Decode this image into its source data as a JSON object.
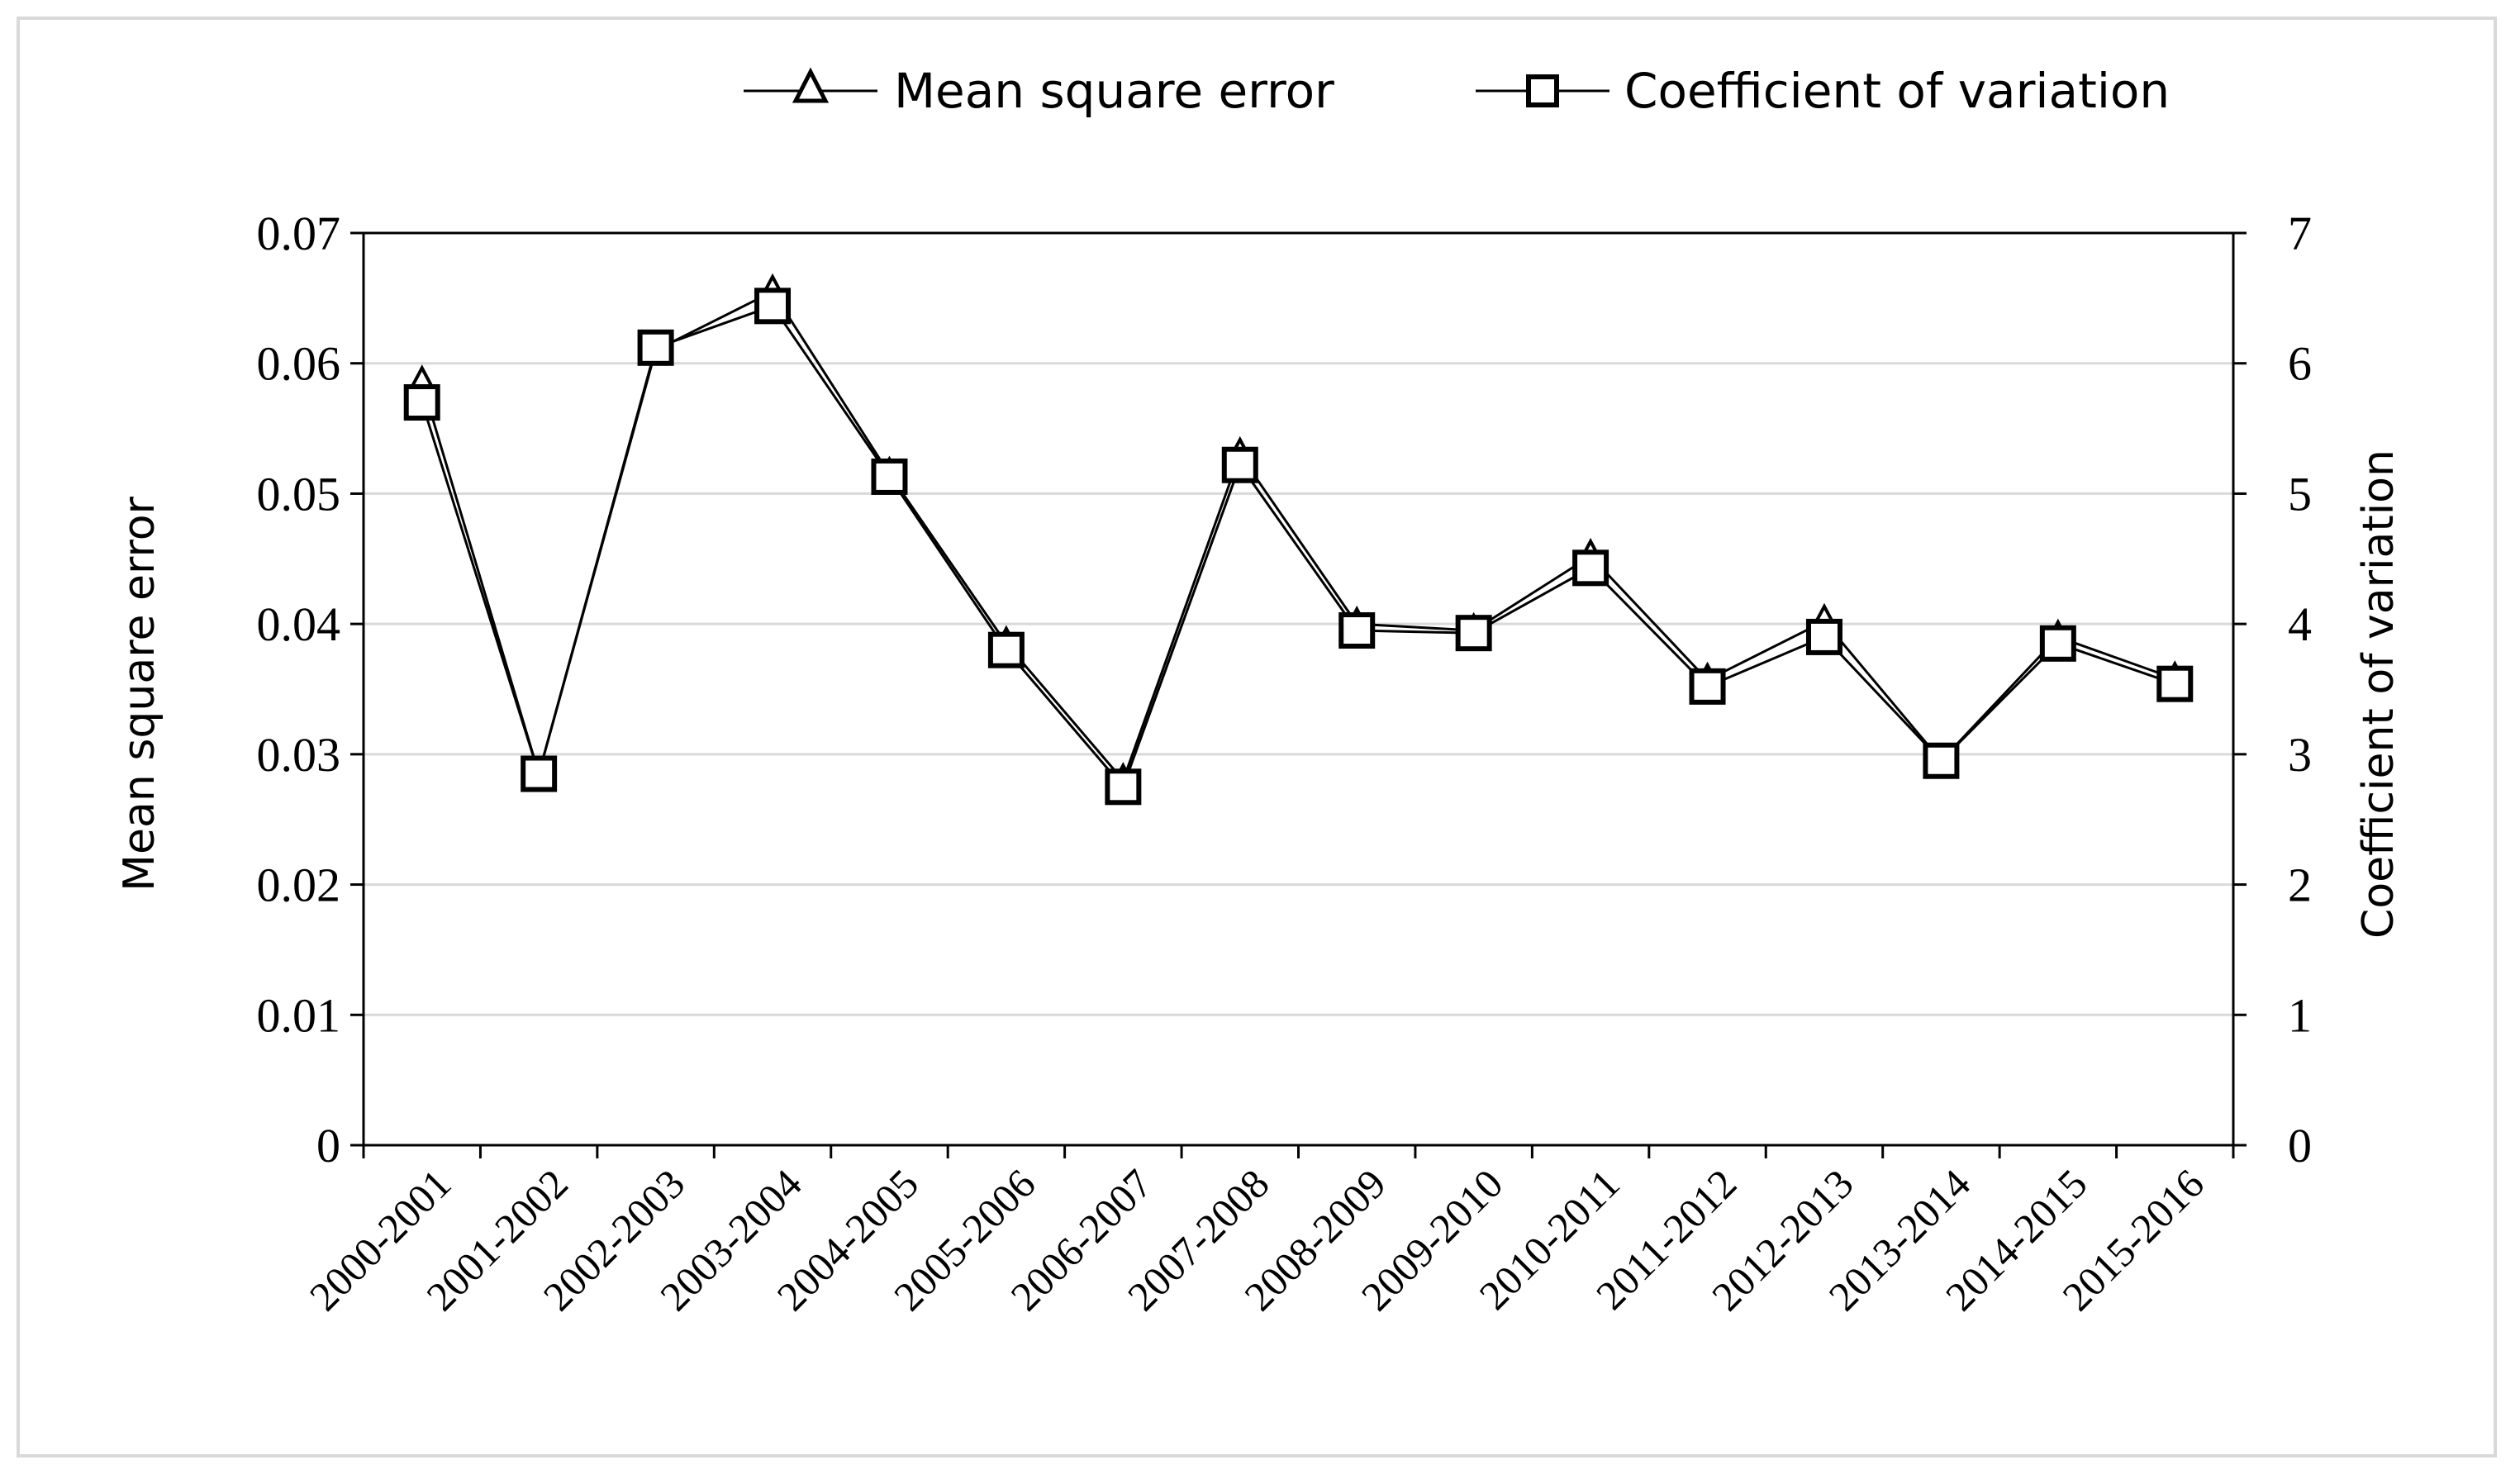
{
  "chart_data": {
    "type": "line",
    "categories": [
      "2000-2001",
      "2001-2002",
      "2002-2003",
      "2003-2004",
      "2004-2005",
      "2005-2006",
      "2006-2007",
      "2007-2008",
      "2008-2009",
      "2009-2010",
      "2010-2011",
      "2011-2012",
      "2012-2013",
      "2013-2014",
      "2014-2015",
      "2015-2016"
    ],
    "series": [
      {
        "name": "Mean square error",
        "marker": "triangle",
        "axis": "left",
        "values": [
          0.0585,
          0.0285,
          0.061,
          0.0655,
          0.0515,
          0.0385,
          0.028,
          0.053,
          0.04,
          0.0395,
          0.0452,
          0.0357,
          0.0402,
          0.0295,
          0.039,
          0.0358
        ]
      },
      {
        "name": "Coefficient of variation",
        "marker": "square",
        "axis": "right",
        "values": [
          5.7,
          2.85,
          6.12,
          6.44,
          5.13,
          3.8,
          2.75,
          5.22,
          3.95,
          3.93,
          4.43,
          3.52,
          3.9,
          2.95,
          3.85,
          3.54
        ]
      }
    ],
    "ylabel": "Mean square error",
    "y2label": "Coefficient of variation",
    "ylim": [
      0,
      0.07
    ],
    "y2lim": [
      0,
      7
    ],
    "yticks": [
      "0",
      "0.01",
      "0.02",
      "0.03",
      "0.04",
      "0.05",
      "0.06",
      "0.07"
    ],
    "y2ticks": [
      "0",
      "1",
      "2",
      "3",
      "4",
      "5",
      "6",
      "7"
    ],
    "grid": "horizontal",
    "legend": "top-right",
    "colors": {
      "line": "#000000",
      "grid": "#d9d9d9",
      "frame": "#d9d9d9"
    }
  }
}
